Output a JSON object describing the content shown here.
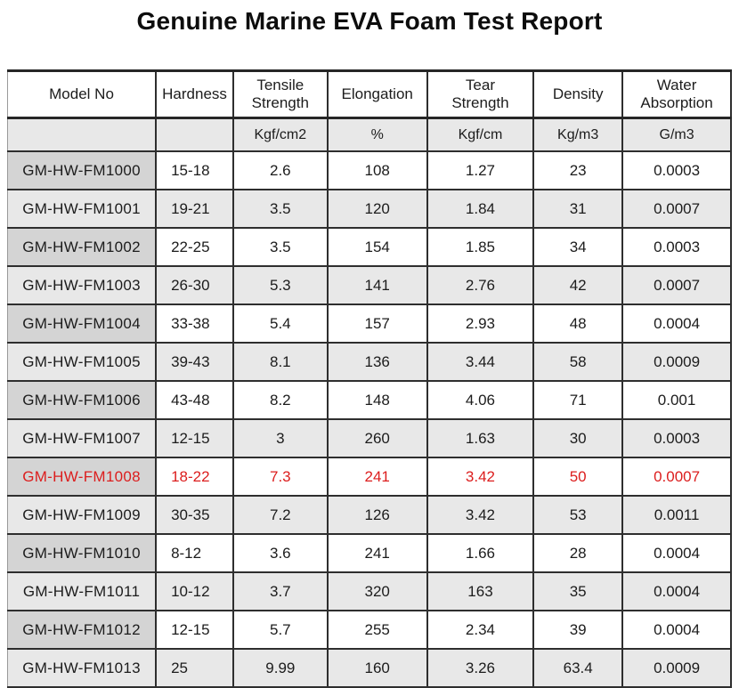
{
  "title": "Genuine Marine EVA Foam Test Report",
  "table": {
    "highlight_color": "#dc1d1d",
    "columns": [
      {
        "label": "Model No",
        "unit": ""
      },
      {
        "label": "Hardness",
        "unit": ""
      },
      {
        "label": "Tensile\nStrength",
        "unit": "Kgf/cm2"
      },
      {
        "label": "Elongation",
        "unit": "%"
      },
      {
        "label": "Tear\nStrength",
        "unit": "Kgf/cm"
      },
      {
        "label": "Density",
        "unit": "Kg/m3"
      },
      {
        "label": "Water\nAbsorption",
        "unit": "G/m3"
      }
    ],
    "rows": [
      {
        "model": "GM-HW-FM1000",
        "hardness": "15-18",
        "tensile": "2.6",
        "elongation": "108",
        "tear": "1.27",
        "density": "23",
        "water": "0.0003",
        "highlight": false
      },
      {
        "model": "GM-HW-FM1001",
        "hardness": "19-21",
        "tensile": "3.5",
        "elongation": "120",
        "tear": "1.84",
        "density": "31",
        "water": "0.0007",
        "highlight": false
      },
      {
        "model": "GM-HW-FM1002",
        "hardness": "22-25",
        "tensile": "3.5",
        "elongation": "154",
        "tear": "1.85",
        "density": "34",
        "water": "0.0003",
        "highlight": false
      },
      {
        "model": "GM-HW-FM1003",
        "hardness": "26-30",
        "tensile": "5.3",
        "elongation": "141",
        "tear": "2.76",
        "density": "42",
        "water": "0.0007",
        "highlight": false
      },
      {
        "model": "GM-HW-FM1004",
        "hardness": "33-38",
        "tensile": "5.4",
        "elongation": "157",
        "tear": "2.93",
        "density": "48",
        "water": "0.0004",
        "highlight": false
      },
      {
        "model": "GM-HW-FM1005",
        "hardness": "39-43",
        "tensile": "8.1",
        "elongation": "136",
        "tear": "3.44",
        "density": "58",
        "water": "0.0009",
        "highlight": false
      },
      {
        "model": "GM-HW-FM1006",
        "hardness": "43-48",
        "tensile": "8.2",
        "elongation": "148",
        "tear": "4.06",
        "density": "71",
        "water": "0.001",
        "highlight": false
      },
      {
        "model": "GM-HW-FM1007",
        "hardness": "12-15",
        "tensile": "3",
        "elongation": "260",
        "tear": "1.63",
        "density": "30",
        "water": "0.0003",
        "highlight": false
      },
      {
        "model": "GM-HW-FM1008",
        "hardness": "18-22",
        "tensile": "7.3",
        "elongation": "241",
        "tear": "3.42",
        "density": "50",
        "water": "0.0007",
        "highlight": true
      },
      {
        "model": "GM-HW-FM1009",
        "hardness": "30-35",
        "tensile": "7.2",
        "elongation": "126",
        "tear": "3.42",
        "density": "53",
        "water": "0.0011",
        "highlight": false
      },
      {
        "model": "GM-HW-FM1010",
        "hardness": "8-12",
        "tensile": "3.6",
        "elongation": "241",
        "tear": "1.66",
        "density": "28",
        "water": "0.0004",
        "highlight": false
      },
      {
        "model": "GM-HW-FM1011",
        "hardness": "10-12",
        "tensile": "3.7",
        "elongation": "320",
        "tear": "163",
        "density": "35",
        "water": "0.0004",
        "highlight": false
      },
      {
        "model": "GM-HW-FM1012",
        "hardness": "12-15",
        "tensile": "5.7",
        "elongation": "255",
        "tear": "2.34",
        "density": "39",
        "water": "0.0004",
        "highlight": false
      },
      {
        "model": "GM-HW-FM1013",
        "hardness": "25",
        "tensile": "9.99",
        "elongation": "160",
        "tear": "3.26",
        "density": "63.4",
        "water": "0.0009",
        "highlight": false
      }
    ]
  }
}
